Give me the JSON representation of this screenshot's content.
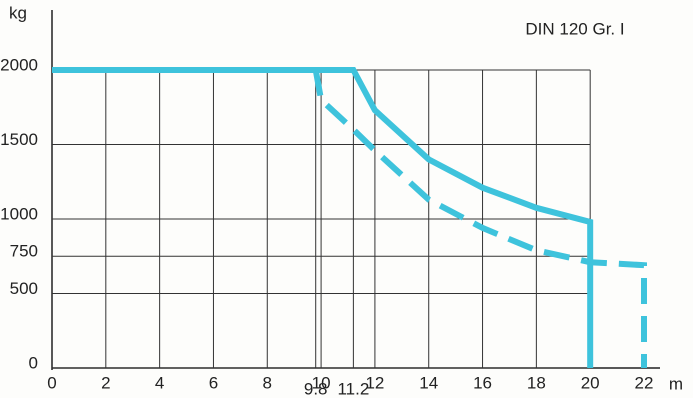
{
  "chart_data": {
    "type": "line",
    "title": "DIN 120 Gr. I",
    "x_label": "m",
    "y_label": "kg",
    "xlim": [
      0,
      22
    ],
    "ylim": [
      0,
      2000
    ],
    "xticks": [
      0,
      2,
      4,
      6,
      8,
      9.8,
      10,
      11.2,
      12,
      14,
      16,
      18,
      20,
      22
    ],
    "yticks": [
      0,
      500,
      750,
      1000,
      1500,
      2000
    ],
    "grid": true,
    "series": [
      {
        "color": "#3ec3dc",
        "dash": false,
        "x": [
          0,
          11.2,
          12,
          14,
          16,
          18,
          20,
          20
        ],
        "values": [
          2000,
          2000,
          1730,
          1400,
          1210,
          1075,
          980,
          0
        ]
      },
      {
        "color": "#3ec3dc",
        "dash": true,
        "x": [
          9.8,
          10,
          11.2,
          12,
          14,
          16,
          18,
          20,
          22,
          22
        ],
        "values": [
          2000,
          1800,
          1600,
          1460,
          1130,
          940,
          790,
          710,
          690,
          0
        ]
      }
    ]
  }
}
